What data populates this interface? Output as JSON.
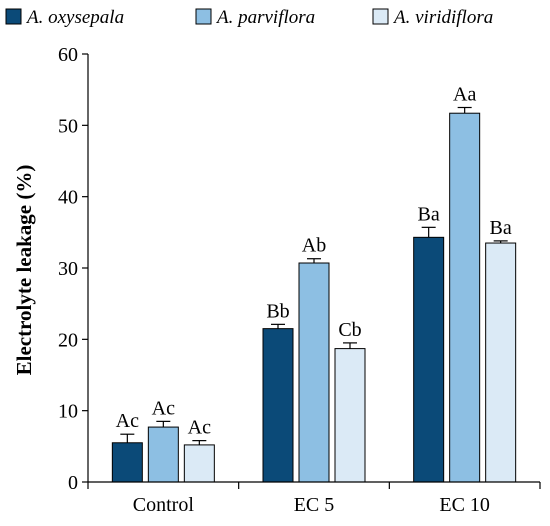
{
  "chart_data": {
    "type": "bar",
    "title": "",
    "xlabel": "",
    "ylabel": "Electrolyte leakage (%)",
    "ylim": [
      0,
      60
    ],
    "yticks": [
      0,
      10,
      20,
      30,
      40,
      50,
      60
    ],
    "categories": [
      "Control",
      "EC 5",
      "EC 10"
    ],
    "legend_position": "top",
    "grid": false,
    "series": [
      {
        "name": "A. oxysepala",
        "color": "#0b4a78",
        "values": [
          5.5,
          21.5,
          34.3
        ],
        "errors": [
          1.2,
          0.6,
          1.4
        ],
        "labels": [
          "Ac",
          "Bb",
          "Ba"
        ]
      },
      {
        "name": "A. parviflora",
        "color": "#8dbfe3",
        "values": [
          7.7,
          30.7,
          51.7
        ],
        "errors": [
          0.8,
          0.6,
          0.8
        ],
        "labels": [
          "Ac",
          "Ab",
          "Aa"
        ]
      },
      {
        "name": "A. viridiflora",
        "color": "#dbeaf6",
        "values": [
          5.2,
          18.7,
          33.5
        ],
        "errors": [
          0.6,
          0.8,
          0.3
        ],
        "labels": [
          "Ac",
          "Cb",
          "Ba"
        ]
      }
    ]
  }
}
